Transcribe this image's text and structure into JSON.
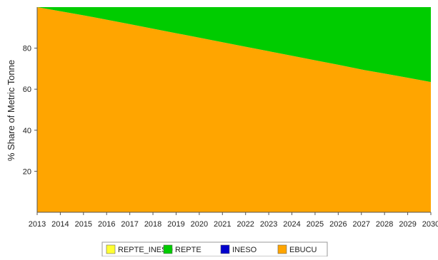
{
  "chart_data": {
    "type": "area",
    "stacked": true,
    "percent": true,
    "x": [
      2013,
      2014,
      2015,
      2016,
      2017,
      2018,
      2019,
      2020,
      2021,
      2022,
      2023,
      2024,
      2025,
      2026,
      2027,
      2028,
      2029,
      2030
    ],
    "series": [
      {
        "name": "EBUCU",
        "color": "#FFA500",
        "values": [
          100,
          98.0,
          96.0,
          93.9,
          91.7,
          89.5,
          87.3,
          85.1,
          82.9,
          80.7,
          78.5,
          76.3,
          74.1,
          71.9,
          69.6,
          67.6,
          65.6,
          63.5
        ]
      },
      {
        "name": "REPTE",
        "color": "#00CC00",
        "values": [
          0,
          2.0,
          4.0,
          6.1,
          8.3,
          10.5,
          12.7,
          14.9,
          17.1,
          19.3,
          21.5,
          23.7,
          25.9,
          28.1,
          30.4,
          32.4,
          34.4,
          36.5
        ]
      },
      {
        "name": "INESO",
        "color": "#0000CC",
        "values": [
          0,
          0,
          0,
          0,
          0,
          0,
          0,
          0,
          0,
          0,
          0,
          0,
          0,
          0,
          0,
          0,
          0,
          0
        ]
      },
      {
        "name": "REPTE_INESO",
        "color": "#FFFF33",
        "values": [
          0,
          0,
          0,
          0,
          0,
          0,
          0,
          0,
          0,
          0,
          0,
          0,
          0,
          0,
          0,
          0,
          0,
          0
        ]
      }
    ],
    "legend": [
      "REPTE_INESO",
      "REPTE",
      "INESO",
      "EBUCU"
    ],
    "legend_position": "bottom",
    "ylabel": "% Share of Metric Tonne",
    "xlabel": "",
    "ylim": [
      0,
      100
    ],
    "yticks": [
      20,
      40,
      60,
      80
    ],
    "grid": false
  }
}
